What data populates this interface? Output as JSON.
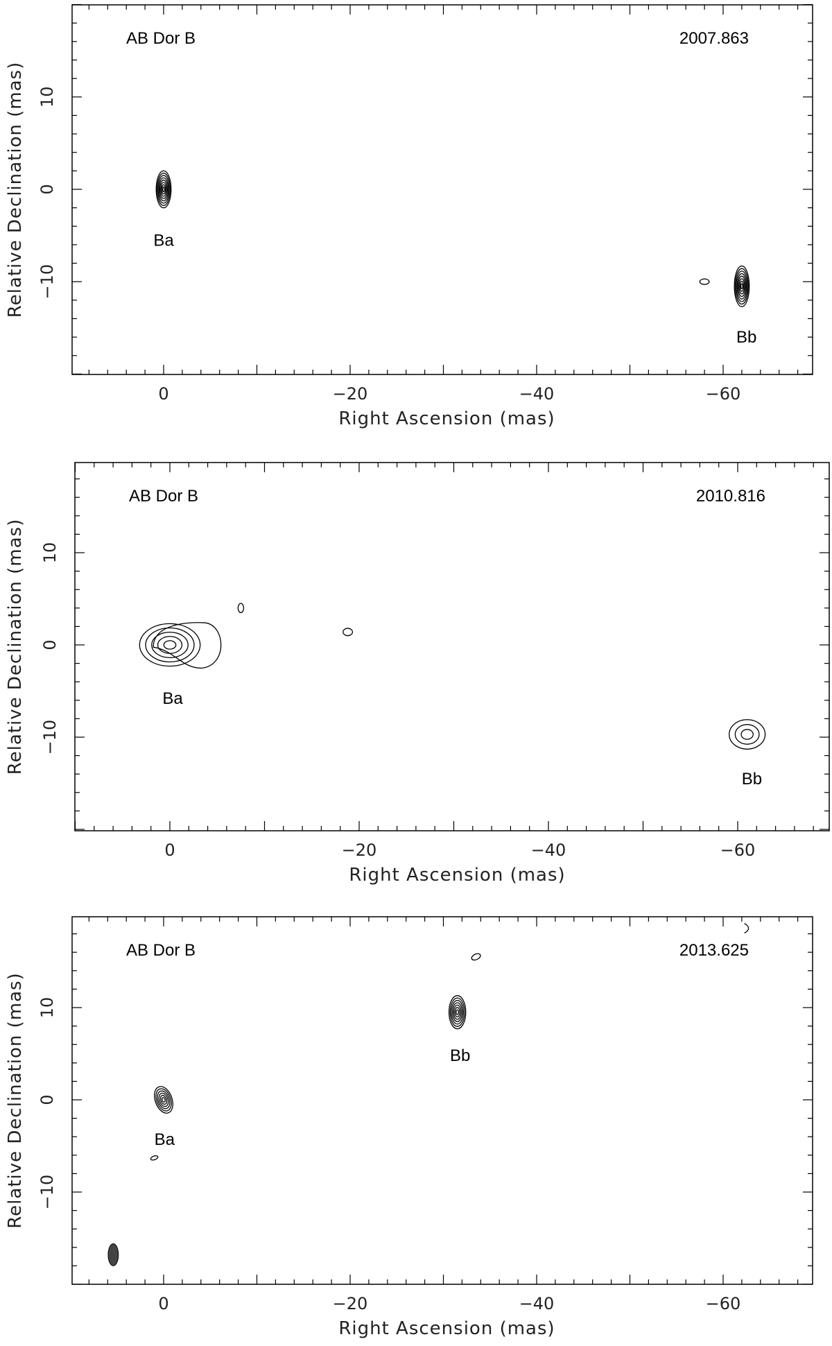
{
  "chart_data": [
    {
      "type": "contour",
      "title": "AB Dor B",
      "epoch": "2007.863",
      "xlabel": "Right Ascension  (mas)",
      "ylabel": "Relative Declination  (mas)",
      "xlim": [
        10,
        -70
      ],
      "ylim": [
        -20,
        20
      ],
      "x_ticks": [
        0,
        -20,
        -40,
        -60
      ],
      "x_tick_labels": [
        "0",
        "−20",
        "−40",
        "−60"
      ],
      "y_ticks": [
        -10,
        0,
        10
      ],
      "y_tick_labels": [
        "−10",
        "0",
        "10"
      ],
      "sources": [
        {
          "name": "Ba",
          "x": 0,
          "y": 0,
          "label_x": 0,
          "label_y": -5.5
        },
        {
          "name": "Bb",
          "x": -62,
          "y": -10.5,
          "label_x": -62.5,
          "label_y": -16
        }
      ],
      "blobs": [
        {
          "x": 0,
          "y": 0,
          "rx": 0.8,
          "ry": 2.0,
          "levels": 8,
          "angle": 0
        },
        {
          "x": -62,
          "y": -10.5,
          "rx": 0.8,
          "ry": 2.2,
          "levels": 8,
          "angle": 0
        },
        {
          "x": -58,
          "y": -10,
          "rx": 0.5,
          "ry": 0.3,
          "levels": 1,
          "angle": 0
        }
      ]
    },
    {
      "type": "contour",
      "title": "AB Dor B",
      "epoch": "2010.816",
      "xlabel": "Right Ascension  (mas)",
      "ylabel": "Relative Declination  (mas)",
      "xlim": [
        10,
        -70
      ],
      "ylim": [
        -20,
        20
      ],
      "x_ticks": [
        0,
        -20,
        -40,
        -60
      ],
      "x_tick_labels": [
        "0",
        "−20",
        "−40",
        "−60"
      ],
      "y_ticks": [
        -10,
        0,
        10
      ],
      "y_tick_labels": [
        "−10",
        "0",
        "10"
      ],
      "sources": [
        {
          "name": "Ba",
          "x": 0,
          "y": 0,
          "label_x": -0.3,
          "label_y": -5.8
        },
        {
          "name": "Bb",
          "x": -61,
          "y": -9.7,
          "label_x": -61.5,
          "label_y": -14.5
        }
      ],
      "blobs": [
        {
          "x": 0,
          "y": 0,
          "rx": 3.2,
          "ry": 2.3,
          "levels": 5,
          "angle": 0
        },
        {
          "x": -61,
          "y": -9.7,
          "rx": 1.9,
          "ry": 1.6,
          "levels": 3,
          "angle": 0
        },
        {
          "x": -7.5,
          "y": 4,
          "rx": 0.3,
          "ry": 0.5,
          "levels": 1,
          "angle": 0
        },
        {
          "x": -18.8,
          "y": 1.4,
          "rx": 0.5,
          "ry": 0.4,
          "levels": 1,
          "angle": 0
        }
      ],
      "extra_contour": {
        "x": -2,
        "y": 0,
        "rx": 7.5,
        "ry": 2.4
      }
    },
    {
      "type": "contour",
      "title": "AB Dor B",
      "epoch": "2013.625",
      "xlabel": "Right Ascension  (mas)",
      "ylabel": "Relative Declination  (mas)",
      "xlim": [
        10,
        -70
      ],
      "ylim": [
        -20,
        20
      ],
      "x_ticks": [
        0,
        -20,
        -40,
        -60
      ],
      "x_tick_labels": [
        "0",
        "−20",
        "−40",
        "−60"
      ],
      "y_ticks": [
        -10,
        0,
        10
      ],
      "y_tick_labels": [
        "−10",
        "0",
        "10"
      ],
      "sources": [
        {
          "name": "Ba",
          "x": 0,
          "y": 0,
          "label_x": -0.1,
          "label_y": -4.3
        },
        {
          "name": "Bb",
          "x": -31.5,
          "y": 9.5,
          "label_x": -31.8,
          "label_y": 4.8
        }
      ],
      "blobs": [
        {
          "x": 0,
          "y": 0,
          "rx": 0.9,
          "ry": 1.5,
          "levels": 6,
          "angle": -20
        },
        {
          "x": -31.5,
          "y": 9.5,
          "rx": 0.9,
          "ry": 1.8,
          "levels": 7,
          "angle": 0
        },
        {
          "x": -33.5,
          "y": 15.5,
          "rx": 0.5,
          "ry": 0.3,
          "levels": 1,
          "angle": -25
        },
        {
          "x": 1,
          "y": -6.3,
          "rx": 0.4,
          "ry": 0.2,
          "levels": 1,
          "angle": -20
        }
      ],
      "beam": {
        "x": 5.4,
        "y": -16.8,
        "rx": 0.55,
        "ry": 1.2,
        "color": "#444444"
      },
      "arc": {
        "x": -62.5,
        "y": 18.6
      }
    }
  ]
}
